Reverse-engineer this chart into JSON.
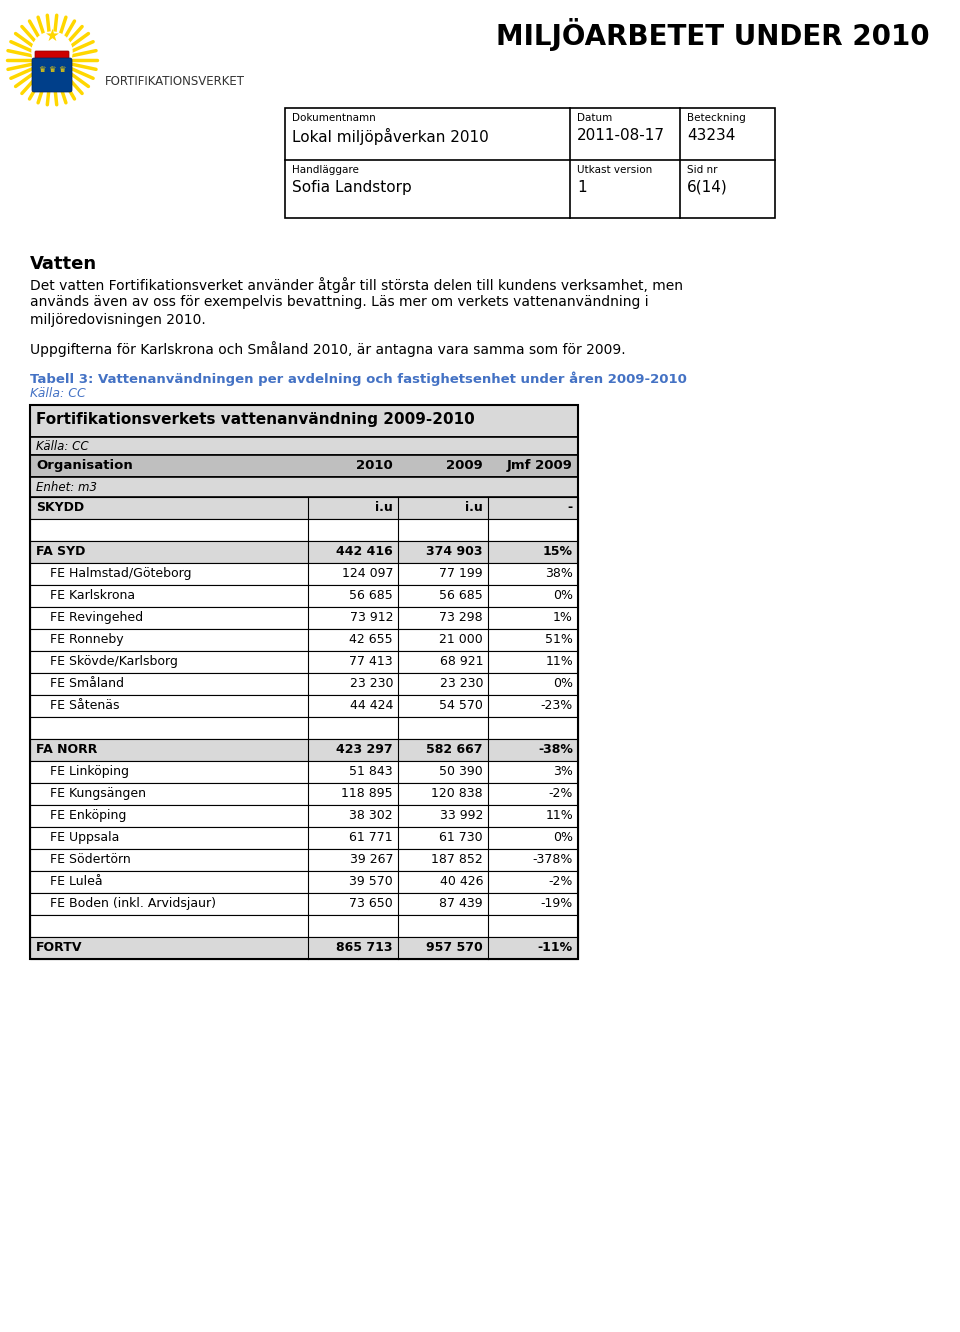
{
  "page_title": "MILJÖARBETET UNDER 2010",
  "doc_info": {
    "label1": "Dokumentnamn",
    "value1": "Lokal miljöpåverkan 2010",
    "label2": "Datum",
    "value2": "2011-08-17",
    "label3": "Beteckning",
    "value3": "43234",
    "label4": "Handläggare",
    "value4": "Sofia Landstorp",
    "label5": "Utkast version",
    "value5": "1",
    "label6": "Sid nr",
    "value6": "6(14)"
  },
  "section_title": "Vatten",
  "line1": "Det vatten Fortifikationsverket använder åtgår till största delen till kundens verksamhet, men",
  "line2": "används även av oss för exempelvis bevattning. Läs mer om verkets vattenanvändning i",
  "line3": "miljöredovisningen 2010.",
  "section_text2": "Uppgifterna för Karlskrona och Småland 2010, är antagna vara samma som för 2009.",
  "table_caption": "Tabell 3: Vattenanvändningen per avdelning och fastighetsenhet under åren 2009-2010",
  "table_source": "Källa: CC",
  "table_title": "Fortifikationsverkets vattenanvändning 2009-2010",
  "table_subtitle": "Källa: CC",
  "col_headers": [
    "Organisation",
    "2010",
    "2009",
    "Jmf 2009"
  ],
  "unit_label": "Enhet: m3",
  "rows": [
    {
      "org": "SKYDD",
      "v2010": "i.u",
      "v2009": "i.u",
      "jmf": "-",
      "bold": true
    },
    {
      "org": "",
      "v2010": "",
      "v2009": "",
      "jmf": "",
      "bold": false
    },
    {
      "org": "FA SYD",
      "v2010": "442 416",
      "v2009": "374 903",
      "jmf": "15%",
      "bold": true
    },
    {
      "org": "FE Halmstad/Göteborg",
      "v2010": "124 097",
      "v2009": "77 199",
      "jmf": "38%",
      "bold": false
    },
    {
      "org": "FE Karlskrona",
      "v2010": "56 685",
      "v2009": "56 685",
      "jmf": "0%",
      "bold": false
    },
    {
      "org": "FE Revingehed",
      "v2010": "73 912",
      "v2009": "73 298",
      "jmf": "1%",
      "bold": false
    },
    {
      "org": "FE Ronneby",
      "v2010": "42 655",
      "v2009": "21 000",
      "jmf": "51%",
      "bold": false
    },
    {
      "org": "FE Skövde/Karlsborg",
      "v2010": "77 413",
      "v2009": "68 921",
      "jmf": "11%",
      "bold": false
    },
    {
      "org": "FE Småland",
      "v2010": "23 230",
      "v2009": "23 230",
      "jmf": "0%",
      "bold": false
    },
    {
      "org": "FE Såtenäs",
      "v2010": "44 424",
      "v2009": "54 570",
      "jmf": "-23%",
      "bold": false
    },
    {
      "org": "",
      "v2010": "",
      "v2009": "",
      "jmf": "",
      "bold": false
    },
    {
      "org": "FA NORR",
      "v2010": "423 297",
      "v2009": "582 667",
      "jmf": "-38%",
      "bold": true
    },
    {
      "org": "FE Linköping",
      "v2010": "51 843",
      "v2009": "50 390",
      "jmf": "3%",
      "bold": false
    },
    {
      "org": "FE Kungsängen",
      "v2010": "118 895",
      "v2009": "120 838",
      "jmf": "-2%",
      "bold": false
    },
    {
      "org": "FE Enköping",
      "v2010": "38 302",
      "v2009": "33 992",
      "jmf": "11%",
      "bold": false
    },
    {
      "org": "FE Uppsala",
      "v2010": "61 771",
      "v2009": "61 730",
      "jmf": "0%",
      "bold": false
    },
    {
      "org": "FE Södertörn",
      "v2010": "39 267",
      "v2009": "187 852",
      "jmf": "-378%",
      "bold": false
    },
    {
      "org": "FE Luleå",
      "v2010": "39 570",
      "v2009": "40 426",
      "jmf": "-2%",
      "bold": false
    },
    {
      "org": "FE Boden (inkl. Arvidsjaur)",
      "v2010": "73 650",
      "v2009": "87 439",
      "jmf": "-19%",
      "bold": false
    },
    {
      "org": "",
      "v2010": "",
      "v2009": "",
      "jmf": "",
      "bold": false
    },
    {
      "org": "FORTV",
      "v2010": "865 713",
      "v2009": "957 570",
      "jmf": "-11%",
      "bold": true
    }
  ],
  "caption_color": "#4472c4",
  "light_bg": "#d9d9d9",
  "header_bg": "#bfbfbf",
  "white_bg": "#ffffff"
}
